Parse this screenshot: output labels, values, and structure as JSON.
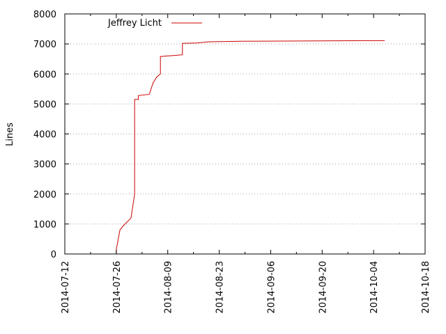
{
  "chart_data": {
    "type": "line",
    "title": "",
    "xlabel": "",
    "ylabel": "Lines",
    "x_type": "date",
    "xlim": [
      "2014-07-12",
      "2014-10-18"
    ],
    "ylim": [
      0,
      8000
    ],
    "x_ticks": [
      "2014-07-12",
      "2014-07-26",
      "2014-08-09",
      "2014-08-23",
      "2014-09-06",
      "2014-09-20",
      "2014-10-04",
      "2014-10-18"
    ],
    "y_ticks": [
      0,
      1000,
      2000,
      3000,
      4000,
      5000,
      6000,
      7000,
      8000
    ],
    "grid": {
      "horizontal": true,
      "vertical": false,
      "style": "dotted"
    },
    "legend": {
      "position": "top-left"
    },
    "colors": {
      "series": "#cc0000",
      "grid": "#a0a0a0",
      "axis": "#000000"
    },
    "series": [
      {
        "name": "Jeffrey Licht",
        "points": [
          [
            "2014-07-26",
            0
          ],
          [
            "2014-07-26",
            150
          ],
          [
            "2014-07-27",
            800
          ],
          [
            "2014-07-28",
            950
          ],
          [
            "2014-07-30",
            1200
          ],
          [
            "2014-07-31",
            2000
          ],
          [
            "2014-07-31",
            5150
          ],
          [
            "2014-08-01",
            5150
          ],
          [
            "2014-08-01",
            5280
          ],
          [
            "2014-08-04",
            5320
          ],
          [
            "2014-08-05",
            5700
          ],
          [
            "2014-08-06",
            5900
          ],
          [
            "2014-08-07",
            6000
          ],
          [
            "2014-08-07",
            6580
          ],
          [
            "2014-08-13",
            6640
          ],
          [
            "2014-08-13",
            7020
          ],
          [
            "2014-08-17",
            7030
          ],
          [
            "2014-08-20",
            7070
          ],
          [
            "2014-08-29",
            7090
          ],
          [
            "2014-09-20",
            7100
          ],
          [
            "2014-10-01",
            7110
          ],
          [
            "2014-10-07",
            7110
          ]
        ]
      }
    ]
  }
}
